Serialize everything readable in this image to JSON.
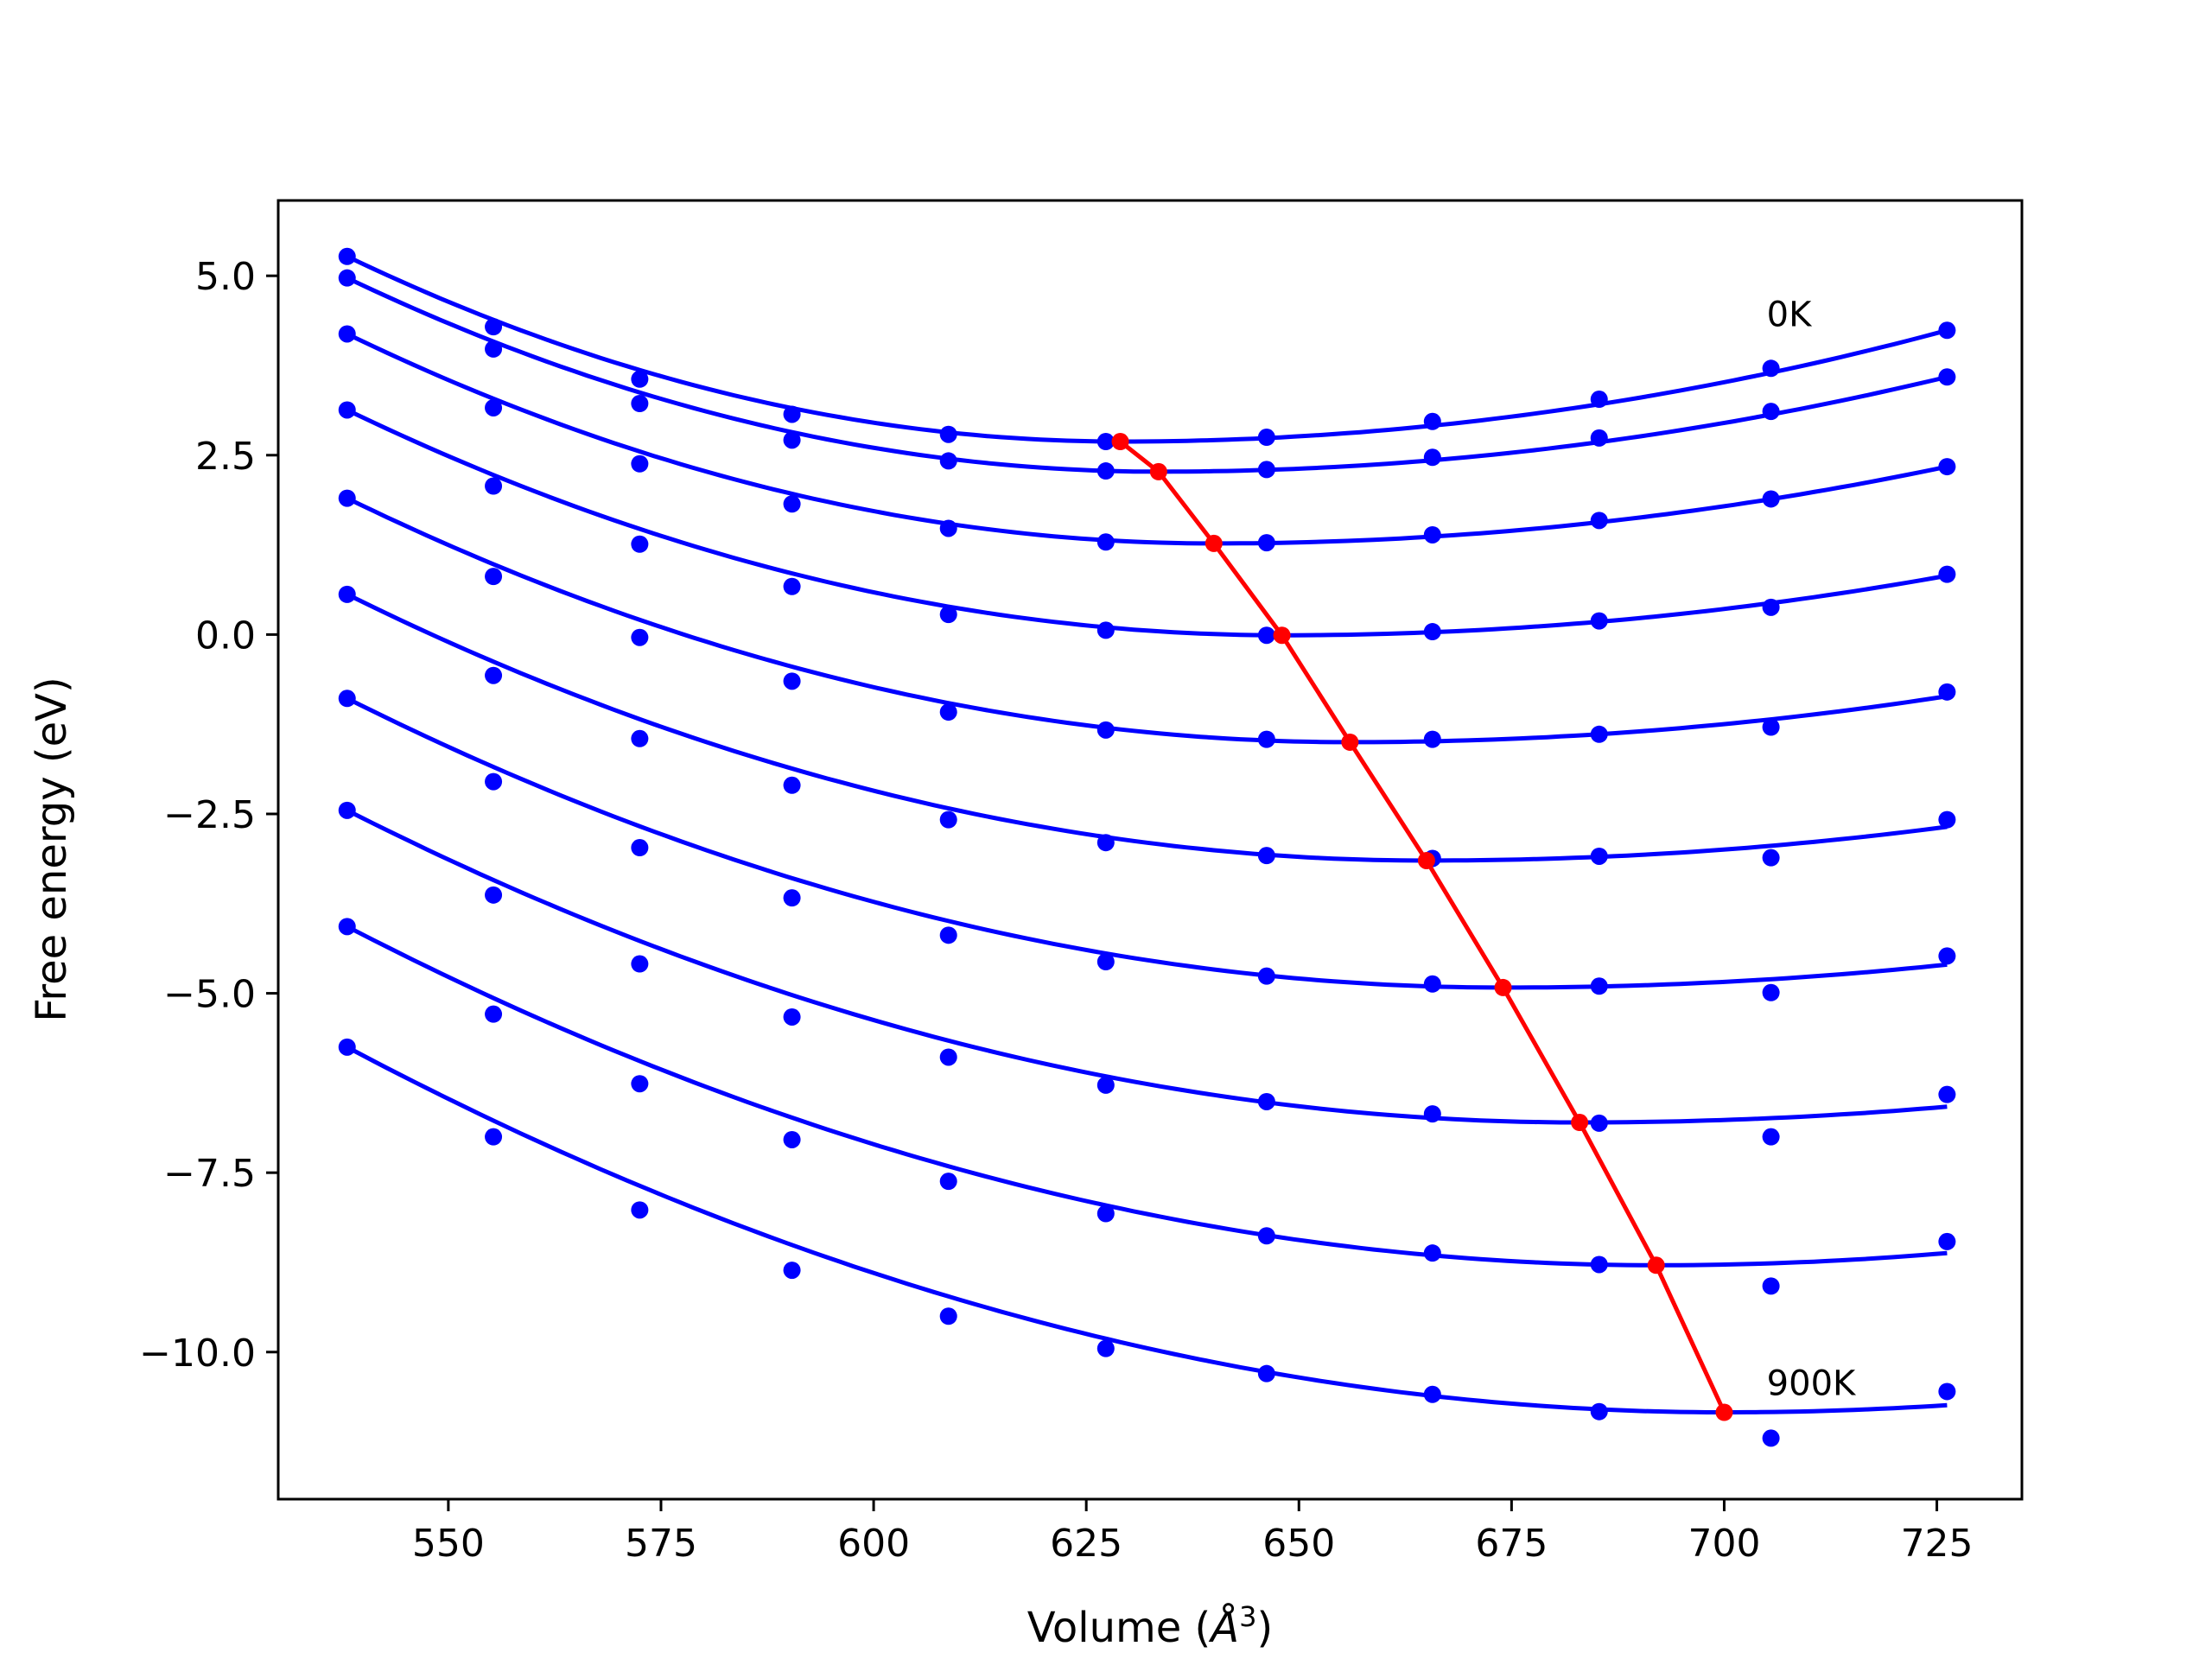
{
  "chart_data": {
    "type": "scatter",
    "title": "",
    "xlabel": "Volume (Å³)",
    "xlabel_main": "Volume (",
    "xlabel_unit": "Å",
    "xlabel_sup": "3",
    "xlabel_close": ")",
    "ylabel": "Free energy (eV)",
    "xlim": [
      530,
      735
    ],
    "ylim": [
      -12.05,
      6.05
    ],
    "xticks": [
      550,
      575,
      600,
      625,
      650,
      675,
      700,
      725
    ],
    "xtick_labels": [
      "550",
      "575",
      "600",
      "625",
      "650",
      "675",
      "700",
      "725"
    ],
    "yticks": [
      5.0,
      2.5,
      0.0,
      -2.5,
      -5.0,
      -7.5,
      -10.0
    ],
    "ytick_labels": [
      "5.0",
      "2.5",
      "0.0",
      "−2.5",
      "−5.0",
      "−7.5",
      "−10.0"
    ],
    "annotations": [
      {
        "text": "0K",
        "x": 705,
        "y": 4.3
      },
      {
        "text": "900K",
        "x": 705,
        "y": -10.6
      }
    ],
    "colors": {
      "series": "#0000ff",
      "minimum_path": "#ff0000"
    },
    "x": [
      538.1,
      555.3,
      572.5,
      590.4,
      608.8,
      627.3,
      646.2,
      665.7,
      685.3,
      705.5,
      726.2
    ],
    "series": [
      {
        "label_annotation": "0K",
        "points": [
          5.27,
          4.29,
          3.56,
          3.07,
          2.79,
          2.69,
          2.75,
          2.97,
          3.28,
          3.71,
          4.24
        ],
        "fit": {
          "vmin": 629.0,
          "emin": 2.69,
          "left": [
            538.1,
            5.27
          ],
          "right": [
            726.2,
            4.24
          ]
        }
      },
      {
        "points": [
          4.97,
          3.98,
          3.22,
          2.71,
          2.42,
          2.28,
          2.3,
          2.47,
          2.74,
          3.11,
          3.59
        ],
        "fit": {
          "vmin": 633.5,
          "emin": 2.27,
          "left": [
            538.1,
            4.97
          ],
          "right": [
            726.2,
            3.59
          ]
        }
      },
      {
        "points": [
          4.19,
          3.16,
          2.38,
          1.82,
          1.48,
          1.29,
          1.28,
          1.39,
          1.59,
          1.89,
          2.34
        ],
        "fit": {
          "vmin": 640.0,
          "emin": 1.27,
          "left": [
            538.1,
            4.19
          ],
          "right": [
            726.2,
            2.34
          ]
        }
      },
      {
        "points": [
          3.13,
          2.07,
          1.26,
          0.67,
          0.28,
          0.06,
          -0.01,
          0.04,
          0.19,
          0.38,
          0.84
        ],
        "fit": {
          "vmin": 648.0,
          "emin": -0.01,
          "left": [
            538.1,
            3.13
          ],
          "right": [
            726.2,
            0.82
          ]
        }
      },
      {
        "points": [
          1.9,
          0.81,
          -0.04,
          -0.65,
          -1.08,
          -1.33,
          -1.46,
          -1.46,
          -1.39,
          -1.29,
          -0.8
        ],
        "fit": {
          "vmin": 656.0,
          "emin": -1.5,
          "left": [
            538.1,
            1.9
          ],
          "right": [
            726.2,
            -0.86
          ]
        }
      },
      {
        "points": [
          0.56,
          -0.57,
          -1.45,
          -2.1,
          -2.58,
          -2.9,
          -3.08,
          -3.12,
          -3.09,
          -3.11,
          -2.58
        ],
        "fit": {
          "vmin": 665.0,
          "emin": -3.15,
          "left": [
            538.1,
            0.56
          ],
          "right": [
            726.2,
            -2.68
          ]
        }
      },
      {
        "points": [
          -0.89,
          -2.05,
          -2.97,
          -3.67,
          -4.19,
          -4.56,
          -4.76,
          -4.87,
          -4.9,
          -4.99,
          -4.48
        ],
        "fit": {
          "vmin": 674.0,
          "emin": -4.92,
          "left": [
            538.1,
            -0.89
          ],
          "right": [
            726.2,
            -4.6
          ]
        }
      },
      {
        "points": [
          -2.45,
          -3.63,
          -4.59,
          -5.33,
          -5.89,
          -6.28,
          -6.51,
          -6.68,
          -6.81,
          -7.0,
          -6.41
        ],
        "fit": {
          "vmin": 683.0,
          "emin": -6.8,
          "left": [
            538.1,
            -2.45
          ],
          "right": [
            726.2,
            -6.58
          ]
        }
      },
      {
        "points": [
          -4.07,
          -5.29,
          -6.26,
          -7.04,
          -7.62,
          -8.07,
          -8.38,
          -8.62,
          -8.78,
          -9.08,
          -8.46
        ],
        "fit": {
          "vmin": 692.0,
          "emin": -8.79,
          "left": [
            538.1,
            -4.07
          ],
          "right": [
            726.2,
            -8.62
          ]
        }
      },
      {
        "label_annotation": "900K",
        "points": [
          -5.75,
          -7.0,
          -8.02,
          -8.86,
          -9.5,
          -9.95,
          -10.3,
          -10.59,
          -10.83,
          -11.2,
          -10.55
        ],
        "fit": {
          "vmin": 700.0,
          "emin": -10.84,
          "left": [
            538.1,
            -5.75
          ],
          "right": [
            726.2,
            -10.74
          ]
        }
      }
    ],
    "minimum_path": {
      "x": [
        629.0,
        633.5,
        640.0,
        648.0,
        656.0,
        665.0,
        674.0,
        683.0,
        692.0,
        700.0
      ],
      "y": [
        2.69,
        2.27,
        1.27,
        -0.01,
        -1.5,
        -3.15,
        -4.92,
        -6.8,
        -8.79,
        -10.84
      ]
    }
  }
}
